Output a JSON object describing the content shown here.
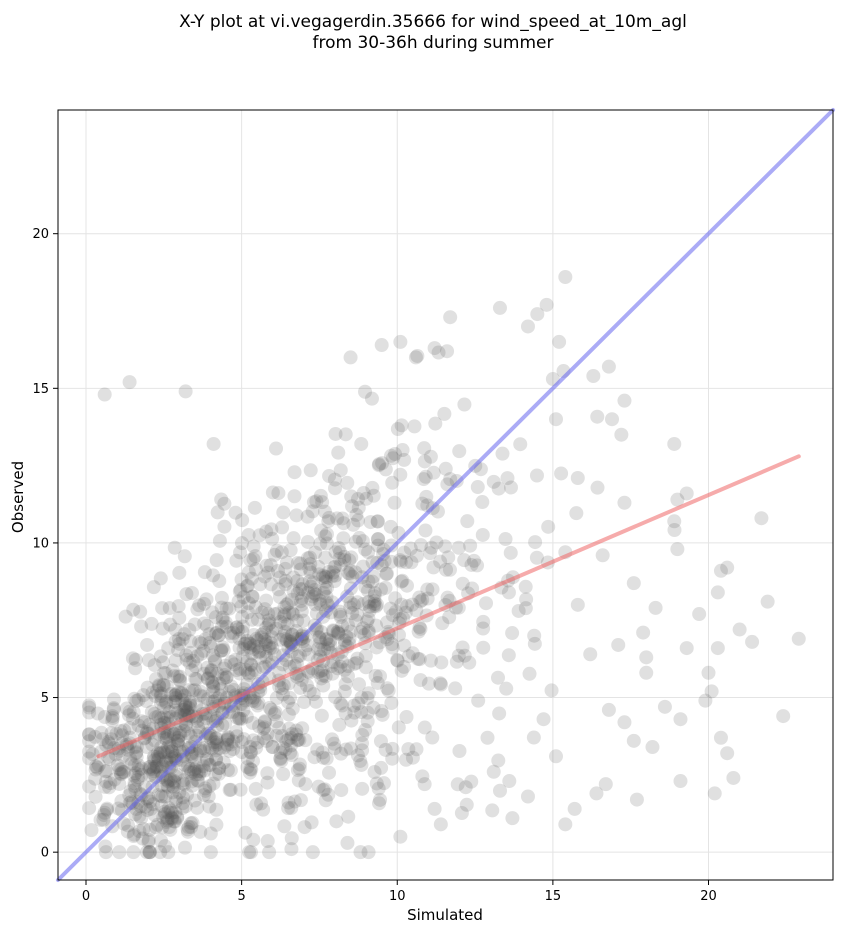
{
  "chart_data": {
    "type": "scatter",
    "title": "X-Y plot at vi.vegagerdin.35666 for wind_speed_at_10m_agl",
    "subtitle": "from 30-36h during summer",
    "xlabel": "Simulated",
    "ylabel": "Observed",
    "xlim": [
      -0.9,
      24
    ],
    "ylim": [
      -0.9,
      24
    ],
    "xticks": [
      0,
      5,
      10,
      15,
      20
    ],
    "yticks": [
      0,
      5,
      10,
      15,
      20
    ],
    "grid": true,
    "point_color": "#555555",
    "point_alpha": 0.18,
    "identity_line": {
      "from": [
        -0.9,
        -0.9
      ],
      "to": [
        24,
        24
      ],
      "color": "#6666ee"
    },
    "fit_line": {
      "from": [
        0.4,
        3.1
      ],
      "to": [
        22.9,
        12.8
      ],
      "color": "#ee6666"
    },
    "outlier_points": [
      [
        0.6,
        14.8
      ],
      [
        1.4,
        15.2
      ],
      [
        3.2,
        14.9
      ],
      [
        4.1,
        13.2
      ],
      [
        8.5,
        16.0
      ],
      [
        9.5,
        16.4
      ],
      [
        10.1,
        16.5
      ],
      [
        10.6,
        16.0
      ],
      [
        11.2,
        16.3
      ],
      [
        11.6,
        16.2
      ],
      [
        11.7,
        17.3
      ],
      [
        13.3,
        17.6
      ],
      [
        14.2,
        17.0
      ],
      [
        14.5,
        17.4
      ],
      [
        14.8,
        17.7
      ],
      [
        15.4,
        18.6
      ],
      [
        15.2,
        16.5
      ],
      [
        15.0,
        15.3
      ],
      [
        15.1,
        14.0
      ],
      [
        15.8,
        12.1
      ],
      [
        15.4,
        9.7
      ],
      [
        16.3,
        15.4
      ],
      [
        16.8,
        15.7
      ],
      [
        17.3,
        14.6
      ],
      [
        17.2,
        13.5
      ],
      [
        16.9,
        14.0
      ],
      [
        17.3,
        11.3
      ],
      [
        17.6,
        8.7
      ],
      [
        18.0,
        6.3
      ],
      [
        18.3,
        7.9
      ],
      [
        18.9,
        13.2
      ],
      [
        18.9,
        10.7
      ],
      [
        19.0,
        11.4
      ],
      [
        19.3,
        11.6
      ],
      [
        19.0,
        9.8
      ],
      [
        19.3,
        6.6
      ],
      [
        19.1,
        4.3
      ],
      [
        19.1,
        2.3
      ],
      [
        18.6,
        4.7
      ],
      [
        17.3,
        4.2
      ],
      [
        17.7,
        1.7
      ],
      [
        17.6,
        3.6
      ],
      [
        16.7,
        2.2
      ],
      [
        16.4,
        1.9
      ],
      [
        16.8,
        4.6
      ],
      [
        15.7,
        1.4
      ],
      [
        16.2,
        6.4
      ],
      [
        17.1,
        6.7
      ],
      [
        16.6,
        9.6
      ],
      [
        15.4,
        0.9
      ],
      [
        19.7,
        7.7
      ],
      [
        20.0,
        5.8
      ],
      [
        19.9,
        4.9
      ],
      [
        20.1,
        5.2
      ],
      [
        20.2,
        1.9
      ],
      [
        20.3,
        6.6
      ],
      [
        20.3,
        8.4
      ],
      [
        20.4,
        9.1
      ],
      [
        20.4,
        3.7
      ],
      [
        20.6,
        3.2
      ],
      [
        20.6,
        9.2
      ],
      [
        20.8,
        2.4
      ],
      [
        21.0,
        7.2
      ],
      [
        21.4,
        6.8
      ],
      [
        21.7,
        10.8
      ],
      [
        21.9,
        8.1
      ],
      [
        22.4,
        4.4
      ],
      [
        22.9,
        6.9
      ],
      [
        12.6,
        4.9
      ],
      [
        13.1,
        2.6
      ],
      [
        13.6,
        2.3
      ],
      [
        13.7,
        1.1
      ],
      [
        12.2,
        2.1
      ],
      [
        11.2,
        1.4
      ],
      [
        11.4,
        0.9
      ],
      [
        10.1,
        0.5
      ],
      [
        8.4,
        0.3
      ],
      [
        5.3,
        0.0
      ],
      [
        6.6,
        0.1
      ],
      [
        13.9,
        7.8
      ],
      [
        14.4,
        7.0
      ],
      [
        14.7,
        4.3
      ],
      [
        12.9,
        3.7
      ],
      [
        15.1,
        3.1
      ],
      [
        14.2,
        1.8
      ],
      [
        18.2,
        3.4
      ],
      [
        18.0,
        5.8
      ],
      [
        17.9,
        7.1
      ]
    ],
    "dense_clusters": [
      {
        "center": [
          2.5,
          3.2
        ],
        "spread": [
          1.2,
          1.3
        ],
        "count": 300
      },
      {
        "center": [
          4.0,
          5.0
        ],
        "spread": [
          1.5,
          1.6
        ],
        "count": 260
      },
      {
        "center": [
          6.0,
          6.7
        ],
        "spread": [
          1.5,
          1.9
        ],
        "count": 270
      },
      {
        "center": [
          8.0,
          8.5
        ],
        "spread": [
          1.6,
          2.2
        ],
        "count": 200
      },
      {
        "center": [
          10.0,
          9.5
        ],
        "spread": [
          1.7,
          2.6
        ],
        "count": 130
      },
      {
        "center": [
          12.5,
          9.0
        ],
        "spread": [
          2.0,
          3.3
        ],
        "count": 90
      },
      {
        "center": [
          7.5,
          3.3
        ],
        "spread": [
          2.0,
          1.6
        ],
        "count": 110
      },
      {
        "center": [
          2.0,
          1.0
        ],
        "spread": [
          1.1,
          0.7
        ],
        "count": 70
      }
    ]
  }
}
